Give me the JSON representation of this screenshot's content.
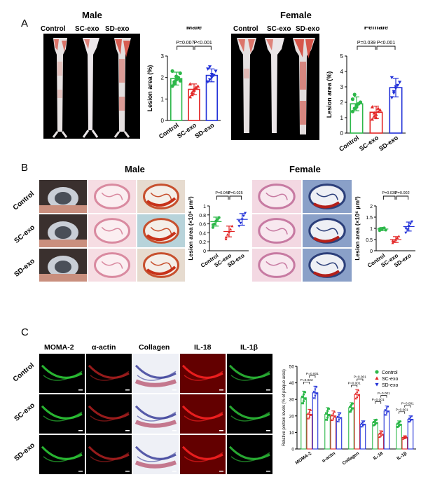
{
  "panelA": {
    "letter": "A",
    "male_title": "Male",
    "female_title": "Female",
    "photo_labels_male": [
      "Control",
      "SC-exo",
      "SD-exo"
    ],
    "photo_labels_female": [
      "Control",
      "SC-exo",
      "SD-exo"
    ]
  },
  "panelB": {
    "letter": "B",
    "male_title": "Male",
    "female_title": "Female",
    "row_labels": [
      "Control",
      "SC-exo",
      "SD-exo"
    ]
  },
  "panelC": {
    "letter": "C",
    "stains": [
      "MOMA-2",
      "α-actin",
      "Collagen",
      "IL-18",
      "IL-1β"
    ],
    "row_labels": [
      "Control",
      "SC-exo",
      "SD-exo"
    ]
  },
  "colors": {
    "control": "#2db84a",
    "sc": "#e32626",
    "sd": "#2130d8"
  },
  "chart_data": [
    {
      "id": "A-male",
      "type": "bar",
      "title": "Male",
      "ylabel": "Lesion area (%)",
      "ylim": [
        0,
        3
      ],
      "yticks": [
        0,
        1,
        2,
        3
      ],
      "categories": [
        "Control",
        "SC-exo",
        "SD-exo"
      ],
      "values": [
        1.95,
        1.45,
        2.1
      ],
      "errors": [
        0.3,
        0.25,
        0.3
      ],
      "points": [
        [
          1.6,
          1.8,
          1.9,
          2.0,
          2.2,
          2.3,
          1.7,
          2.05,
          1.95,
          1.85
        ],
        [
          1.1,
          1.3,
          1.4,
          1.5,
          1.6,
          1.7,
          1.2,
          1.45,
          1.55
        ],
        [
          1.8,
          1.9,
          2.0,
          2.1,
          2.3,
          2.4,
          2.5,
          2.15
        ]
      ],
      "pvalues": [
        {
          "text": "P=0.007",
          "from": 0,
          "to": 1
        },
        {
          "text": "P<0.001",
          "from": 1,
          "to": 2
        }
      ]
    },
    {
      "id": "A-female",
      "type": "bar",
      "title": "Female",
      "ylabel": "Lesion area (%)",
      "ylim": [
        0,
        5
      ],
      "yticks": [
        0,
        1,
        2,
        3,
        4,
        5
      ],
      "categories": [
        "Control",
        "SC-exo",
        "SD-exo"
      ],
      "values": [
        1.9,
        1.35,
        2.95
      ],
      "errors": [
        0.45,
        0.4,
        0.6
      ],
      "points": [
        [
          1.4,
          1.6,
          1.8,
          1.9,
          2.0,
          2.2,
          2.5,
          1.7
        ],
        [
          0.9,
          1.1,
          1.2,
          1.4,
          1.5,
          1.7,
          1.3,
          1.0,
          1.6
        ],
        [
          2.3,
          2.6,
          2.9,
          3.1,
          3.3,
          3.6,
          2.7,
          3.0
        ]
      ],
      "pvalues": [
        {
          "text": "P=0.039",
          "from": 0,
          "to": 1
        },
        {
          "text": "P<0.001",
          "from": 1,
          "to": 2
        }
      ]
    },
    {
      "id": "B-male",
      "type": "scatter",
      "title": "Male",
      "ylabel": "Lesion area (×10⁶ μm²)",
      "ylim": [
        0,
        1.0
      ],
      "yticks": [
        0,
        0.2,
        0.4,
        0.6,
        0.8,
        1.0
      ],
      "categories": [
        "Control",
        "SC-exo",
        "SD-exo"
      ],
      "values": [
        0.65,
        0.43,
        0.7
      ],
      "errors": [
        0.1,
        0.12,
        0.13
      ],
      "points": [
        [
          0.52,
          0.6,
          0.66,
          0.7,
          0.74,
          0.58
        ],
        [
          0.26,
          0.36,
          0.42,
          0.48,
          0.55,
          0.3
        ],
        [
          0.55,
          0.62,
          0.7,
          0.78,
          0.84,
          0.66
        ]
      ],
      "pvalues": [
        {
          "text": "P=0.048",
          "from": 0,
          "to": 1
        },
        {
          "text": "P=0.025",
          "from": 1,
          "to": 2
        }
      ]
    },
    {
      "id": "B-female",
      "type": "scatter",
      "title": "Female",
      "ylabel": "Lesion area (×10⁶ μm²)",
      "ylim": [
        0,
        2.0
      ],
      "yticks": [
        0,
        0.5,
        1.0,
        1.5,
        2.0
      ],
      "categories": [
        "Control",
        "SC-exo",
        "SD-exo"
      ],
      "values": [
        0.97,
        0.5,
        1.08
      ],
      "errors": [
        0.07,
        0.13,
        0.2
      ],
      "points": [
        [
          0.9,
          0.95,
          1.0,
          1.02,
          0.92,
          0.98
        ],
        [
          0.35,
          0.42,
          0.5,
          0.58,
          0.65,
          0.45
        ],
        [
          0.8,
          0.95,
          1.1,
          1.2,
          1.3,
          1.0
        ]
      ],
      "pvalues": [
        {
          "text": "P=0.039",
          "from": 0,
          "to": 1
        },
        {
          "text": "P=0.002",
          "from": 1,
          "to": 2
        }
      ]
    },
    {
      "id": "C",
      "type": "bar",
      "ylabel": "Relative protein levels (% of plaque area)",
      "ylim": [
        0,
        50
      ],
      "yticks": [
        0,
        10,
        20,
        30,
        40,
        50
      ],
      "categories": [
        "MOMA-2",
        "α-actin",
        "Collagen",
        "IL-18",
        "IL-1β"
      ],
      "series": [
        {
          "name": "Control",
          "values": [
            31,
            21,
            25,
            16,
            15
          ]
        },
        {
          "name": "SC-exo",
          "values": [
            21,
            20,
            33,
            9,
            7
          ]
        },
        {
          "name": "SD-exo",
          "values": [
            34,
            19,
            15,
            23,
            18
          ]
        }
      ],
      "errors": [
        [
          4,
          4,
          3,
          2,
          2
        ],
        [
          3,
          3,
          3,
          2,
          1
        ],
        [
          4,
          3,
          2,
          3,
          2
        ]
      ],
      "pvalues": [
        {
          "text": "P=0.022",
          "cat": 0,
          "pair": "01"
        },
        {
          "text": "P=0.001",
          "cat": 0,
          "pair": "12"
        },
        {
          "text": "P=0.001",
          "cat": 2,
          "pair": "01"
        },
        {
          "text": "P=0.001",
          "cat": 2,
          "pair": "12"
        },
        {
          "text": "P=0.001",
          "cat": 3,
          "pair": "01"
        },
        {
          "text": "P=0.001",
          "cat": 3,
          "pair": "12"
        },
        {
          "text": "P=0.001",
          "cat": 4,
          "pair": "01"
        },
        {
          "text": "P=0.001",
          "cat": 4,
          "pair": "12"
        }
      ],
      "legend": [
        "Control",
        "SC-exo",
        "SD-exo"
      ],
      "legend_position": "top-right"
    }
  ]
}
